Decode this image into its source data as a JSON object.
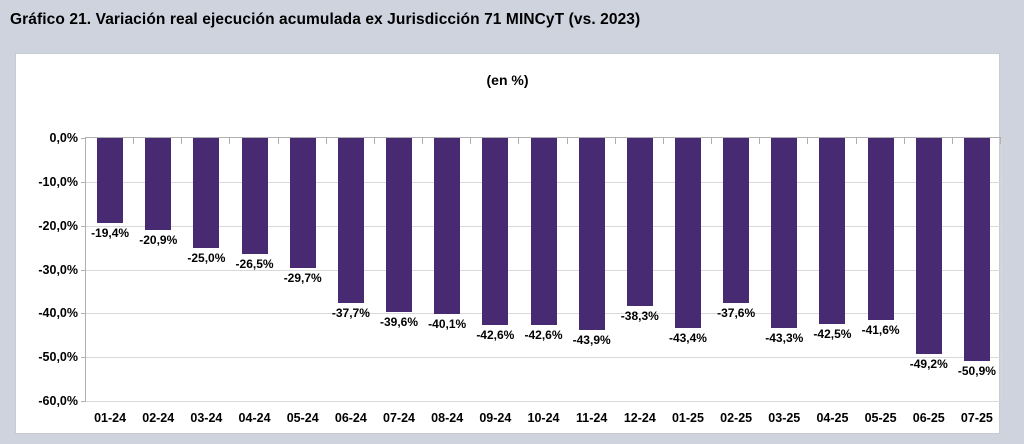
{
  "page": {
    "background": "#ced3de",
    "panel_background": "#ffffff"
  },
  "header": {
    "title": "Gráfico 21. Variación real ejecución acumulada ex Jurisdicción 71 MINCyT (vs. 2023)"
  },
  "chart_data": {
    "type": "bar",
    "title": "(en %)",
    "categories": [
      "01-24",
      "02-24",
      "03-24",
      "04-24",
      "05-24",
      "06-24",
      "07-24",
      "08-24",
      "09-24",
      "10-24",
      "11-24",
      "12-24",
      "01-25",
      "02-25",
      "03-25",
      "04-25",
      "05-25",
      "06-25",
      "07-25"
    ],
    "values": [
      -19.4,
      -20.9,
      -25.0,
      -26.5,
      -29.7,
      -37.7,
      -39.6,
      -40.1,
      -42.6,
      -42.6,
      -43.9,
      -38.3,
      -43.4,
      -37.6,
      -43.3,
      -42.5,
      -41.6,
      -49.2,
      -50.9
    ],
    "value_labels": [
      "-19,4%",
      "-20,9%",
      "-25,0%",
      "-26,5%",
      "-29,7%",
      "-37,7%",
      "-39,6%",
      "-40,1%",
      "-42,6%",
      "-42,6%",
      "-43,9%",
      "-38,3%",
      "-43,4%",
      "-37,6%",
      "-43,3%",
      "-42,5%",
      "-41,6%",
      "-49,2%",
      "-50,9%"
    ],
    "xlabel": "",
    "ylabel": "",
    "ylim": [
      0,
      -60
    ],
    "y_tick_step": -10,
    "y_tick_labels": [
      "0,0%",
      "-10,0%",
      "-20,0%",
      "-30,0%",
      "-40,0%",
      "-50,0%",
      "-60,0%"
    ],
    "grid": true,
    "legend": false,
    "data_labels_position": "outside-end-below",
    "bar_color": "#472a72",
    "gridline_color": "#d9d9d9",
    "axis_color": "#b0b0b0",
    "label_color": "#000000"
  }
}
